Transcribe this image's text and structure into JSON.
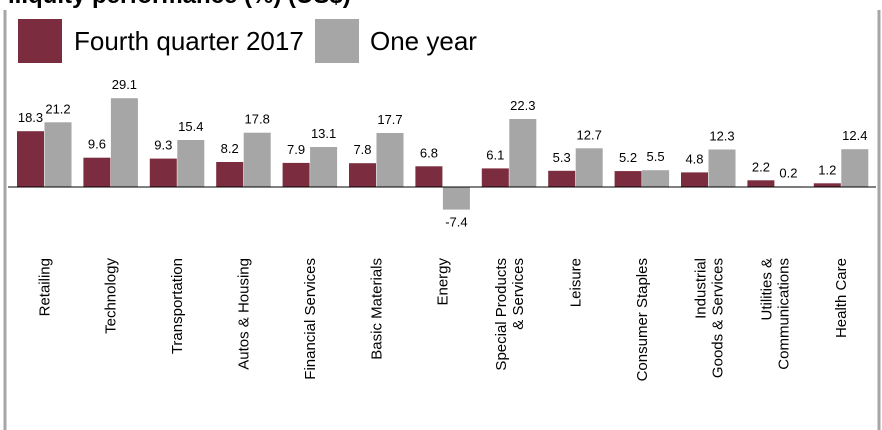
{
  "chart_data": {
    "type": "bar",
    "title": "...quity performance (%) (US$)",
    "legend_position": "top-left",
    "grid": false,
    "ylim": [
      -8,
      30
    ],
    "categories": [
      "Retailing",
      "Technology",
      "Transportation",
      "Autos & Housing",
      "Financial Services",
      "Basic Materials",
      "Energy",
      "Special Products & Services",
      "Leisure",
      "Consumer Staples",
      "Industrial Goods & Services",
      "Utilities & Communications",
      "Health Care"
    ],
    "series": [
      {
        "name": "Fourth quarter 2017",
        "color": "#7b2c3e",
        "values": [
          18.3,
          9.6,
          9.3,
          8.2,
          7.9,
          7.8,
          6.8,
          6.1,
          5.3,
          5.2,
          4.8,
          2.2,
          1.2
        ],
        "labels": [
          "18.3",
          "9.6",
          "9.3",
          "8.2",
          "7.9",
          "7.8",
          "6.8",
          "6.1",
          "5.3",
          "5.2",
          "4.8",
          "2.2",
          "1.2"
        ]
      },
      {
        "name": "One year",
        "color": "#a6a6a6",
        "values": [
          21.2,
          29.1,
          15.4,
          17.8,
          13.1,
          17.7,
          -7.4,
          22.3,
          12.7,
          5.5,
          12.3,
          0.2,
          12.4
        ],
        "labels": [
          "21.2",
          "29.1",
          "15.4",
          "17.8",
          "13.1",
          "17.7",
          "-7.4",
          "22.3",
          "12.7",
          "5.5",
          "12.3",
          "0.2",
          "12.4"
        ]
      }
    ]
  },
  "colors": {
    "background": "#ffffff",
    "frame": "#a6a6a6",
    "axis": "#000000"
  }
}
